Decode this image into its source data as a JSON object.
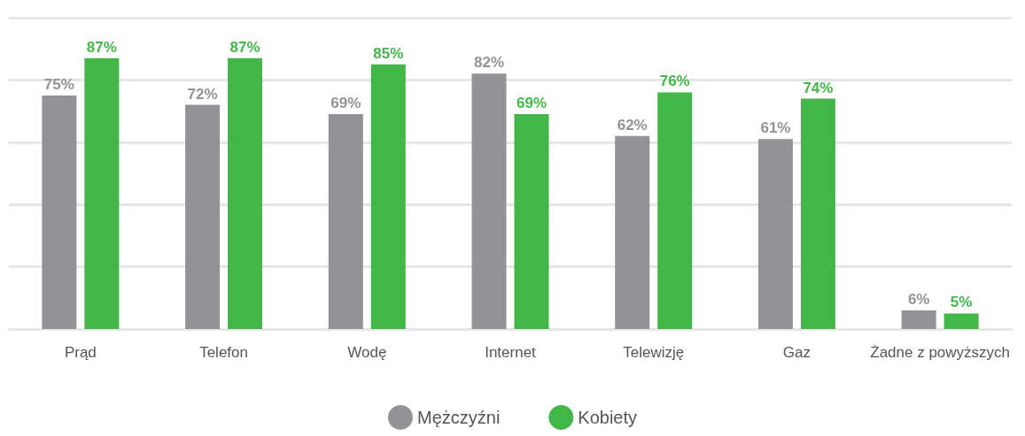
{
  "chart_data": {
    "type": "bar",
    "categories": [
      "Prąd",
      "Telefon",
      "Wodę",
      "Internet",
      "Telewizję",
      "Gaz",
      "Żadne z powyższych"
    ],
    "series": [
      {
        "name": "Mężczyźni",
        "color": "#939397",
        "values": [
          75,
          72,
          69,
          82,
          62,
          61,
          6
        ],
        "value_labels": [
          "75%",
          "72%",
          "69%",
          "82%",
          "62%",
          "61%",
          "6%"
        ]
      },
      {
        "name": "Kobiety",
        "color": "#43b649",
        "values": [
          87,
          87,
          85,
          69,
          76,
          74,
          5
        ],
        "value_labels": [
          "87%",
          "87%",
          "85%",
          "69%",
          "76%",
          "74%",
          "5%"
        ]
      }
    ],
    "tick_labels": "x",
    "grid": "y",
    "legend": "bottom"
  }
}
